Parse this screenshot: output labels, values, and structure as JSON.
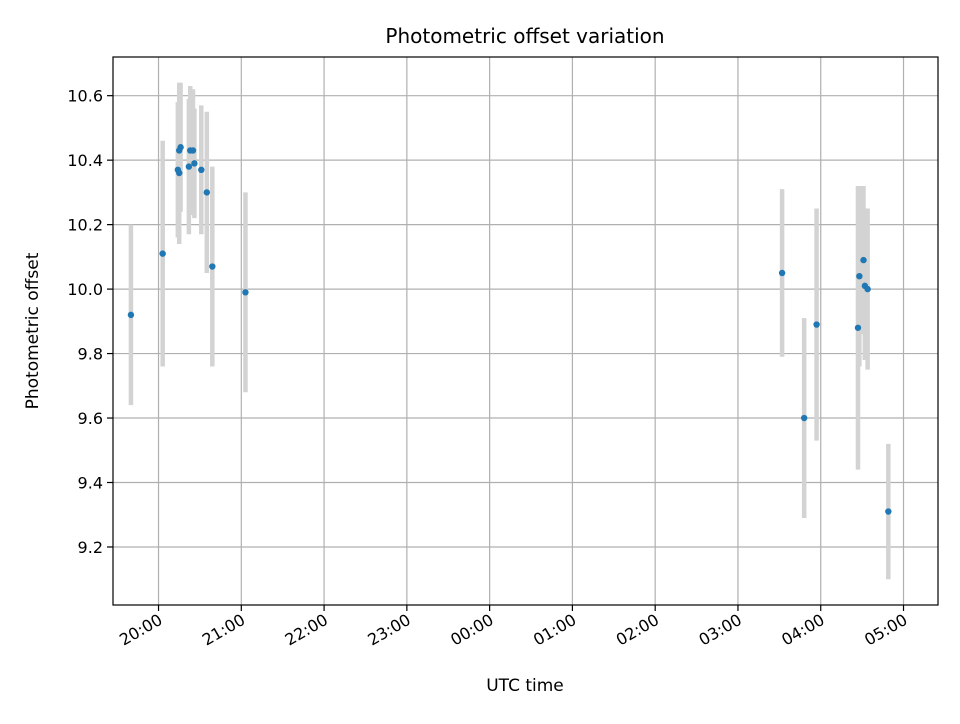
{
  "chart_data": {
    "type": "scatter",
    "title": "Photometric offset variation",
    "xlabel": "UTC time",
    "ylabel": "Photometric offset",
    "x_scale": "time",
    "xlim": [
      "19:27",
      "05:25"
    ],
    "ylim": [
      9.02,
      10.72
    ],
    "grid": true,
    "legend": "none",
    "x_ticks": [
      "20:00",
      "21:00",
      "22:00",
      "23:00",
      "00:00",
      "01:00",
      "02:00",
      "03:00",
      "04:00",
      "05:00"
    ],
    "y_ticks": [
      "9.2",
      "9.4",
      "9.6",
      "9.8",
      "10.0",
      "10.2",
      "10.4",
      "10.6"
    ],
    "series": [
      {
        "marker_color": "#1f77b4",
        "errorbar_color": "#d3d3d3",
        "points": [
          {
            "x": "19:40",
            "y": 9.92,
            "err": 0.28
          },
          {
            "x": "20:03",
            "y": 10.11,
            "err": 0.35
          },
          {
            "x": "20:14",
            "y": 10.37,
            "err": 0.21
          },
          {
            "x": "20:15",
            "y": 10.36,
            "err": 0.22
          },
          {
            "x": "20:15",
            "y": 10.43,
            "err": 0.21
          },
          {
            "x": "20:16",
            "y": 10.44,
            "err": 0.2
          },
          {
            "x": "20:22",
            "y": 10.38,
            "err": 0.21
          },
          {
            "x": "20:23",
            "y": 10.43,
            "err": 0.2
          },
          {
            "x": "20:25",
            "y": 10.43,
            "err": 0.19
          },
          {
            "x": "20:26",
            "y": 10.39,
            "err": 0.17
          },
          {
            "x": "20:31",
            "y": 10.37,
            "err": 0.2
          },
          {
            "x": "20:35",
            "y": 10.3,
            "err": 0.25
          },
          {
            "x": "20:39",
            "y": 10.07,
            "err": 0.31
          },
          {
            "x": "21:03",
            "y": 9.99,
            "err": 0.31
          },
          {
            "x": "03:32",
            "y": 10.05,
            "err": 0.26
          },
          {
            "x": "03:48",
            "y": 9.6,
            "err": 0.31
          },
          {
            "x": "03:57",
            "y": 9.89,
            "err": 0.36
          },
          {
            "x": "04:27",
            "y": 9.88,
            "err": 0.44
          },
          {
            "x": "04:28",
            "y": 10.04,
            "err": 0.28
          },
          {
            "x": "04:31",
            "y": 10.09,
            "err": 0.23
          },
          {
            "x": "04:32",
            "y": 10.01,
            "err": 0.23
          },
          {
            "x": "04:34",
            "y": 10.0,
            "err": 0.25
          },
          {
            "x": "04:49",
            "y": 9.31,
            "err": 0.21
          }
        ]
      }
    ]
  }
}
